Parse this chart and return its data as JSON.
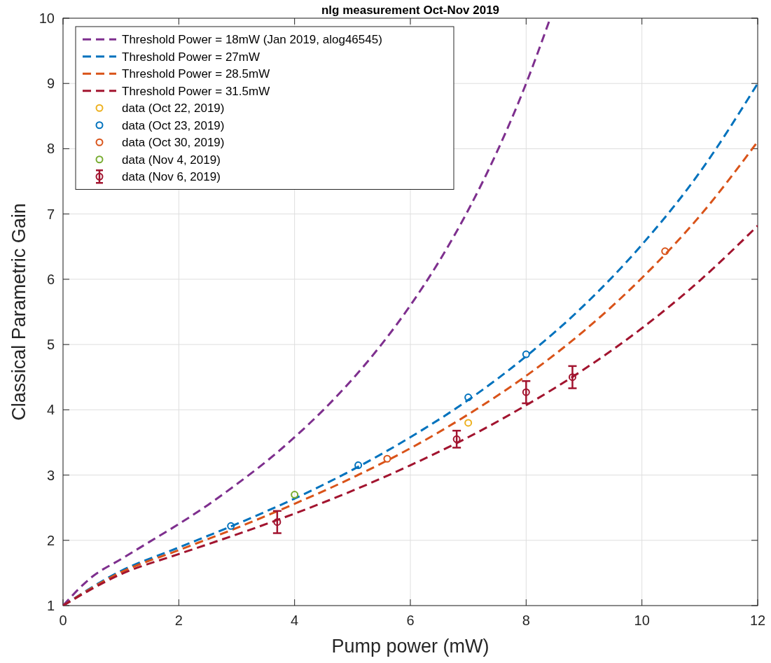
{
  "chart_data": {
    "type": "line",
    "title": "nlg measurement Oct-Nov 2019",
    "xlabel": "Pump power (mW)",
    "ylabel": "Classical Parametric Gain",
    "xlim": [
      0,
      12
    ],
    "xticks": [
      0,
      2,
      4,
      6,
      8,
      10,
      12
    ],
    "ylim": [
      1,
      10
    ],
    "yticks": [
      1,
      2,
      3,
      4,
      5,
      6,
      7,
      8,
      9,
      10
    ],
    "grid": true,
    "legend": "top left",
    "series": [
      {
        "name": "Threshold Power = 18mW (Jan 2019, alog46545)",
        "color": "#7e2f8e",
        "line_style": "dashed",
        "marker": "none",
        "x": [
          0,
          0.5,
          1,
          1.5,
          2,
          2.5,
          3,
          3.5,
          4,
          4.5,
          5,
          5.5,
          6,
          6.5,
          7,
          7.5,
          8,
          8.4
        ],
        "values": [
          1,
          1.44,
          1.71,
          1.98,
          2.25,
          2.54,
          2.86,
          3.2,
          3.58,
          4,
          4.47,
          5,
          5.6,
          6.28,
          7.06,
          7.96,
          9,
          9.96
        ]
      },
      {
        "name": "Threshold Power = 27mW",
        "color": "#0072bd",
        "line_style": "dashed",
        "marker": "none",
        "x": [
          0,
          1,
          2,
          3,
          4,
          5,
          6,
          7,
          8,
          9,
          10,
          11,
          12
        ],
        "values": [
          1,
          1.53,
          1.89,
          2.25,
          2.64,
          3.08,
          3.58,
          4.15,
          4.82,
          5.6,
          6.53,
          7.64,
          9
        ]
      },
      {
        "name": "Threshold Power = 28.5mW",
        "color": "#d95319",
        "line_style": "dashed",
        "marker": "none",
        "x": [
          0,
          1,
          2,
          3,
          4,
          5,
          6,
          7,
          8,
          9,
          10,
          11,
          12
        ],
        "values": [
          1,
          1.51,
          1.85,
          2.19,
          2.56,
          2.96,
          3.41,
          3.93,
          4.52,
          5.21,
          6.02,
          6.97,
          8.11
        ]
      },
      {
        "name": "Threshold Power = 31.5mW",
        "color": "#a2142f",
        "line_style": "dashed",
        "marker": "none",
        "x": [
          0,
          1,
          2,
          3,
          4,
          5,
          6,
          7,
          8,
          9,
          10,
          11,
          12
        ],
        "values": [
          1,
          1.48,
          1.79,
          2.09,
          2.41,
          2.76,
          3.15,
          3.58,
          4.07,
          4.62,
          5.25,
          5.98,
          6.82
        ]
      },
      {
        "type": "scatter",
        "name": "data (Oct 22, 2019)",
        "color": "#edb120",
        "marker": "circle",
        "x": [
          7
        ],
        "values": [
          3.8
        ]
      },
      {
        "type": "scatter",
        "name": "data (Oct 23, 2019)",
        "color": "#0072bd",
        "marker": "circle",
        "x": [
          2.9,
          5.1,
          7,
          8
        ],
        "values": [
          2.22,
          3.15,
          4.19,
          4.85
        ]
      },
      {
        "type": "scatter",
        "name": "data (Oct 30, 2019)",
        "color": "#d95319",
        "marker": "circle",
        "x": [
          5.6,
          10.4
        ],
        "values": [
          3.25,
          6.43
        ]
      },
      {
        "type": "scatter",
        "name": "data (Nov 4, 2019)",
        "color": "#77ac30",
        "marker": "circle",
        "x": [
          4
        ],
        "values": [
          2.7
        ]
      },
      {
        "type": "scatter",
        "name": "data (Nov 6, 2019)",
        "color": "#a2142f",
        "marker": "circle",
        "x": [
          3.7,
          6.8,
          8,
          8.8
        ],
        "values": [
          2.28,
          3.55,
          4.27,
          4.5
        ],
        "errors": [
          0.17,
          0.13,
          0.17,
          0.17
        ]
      }
    ]
  }
}
